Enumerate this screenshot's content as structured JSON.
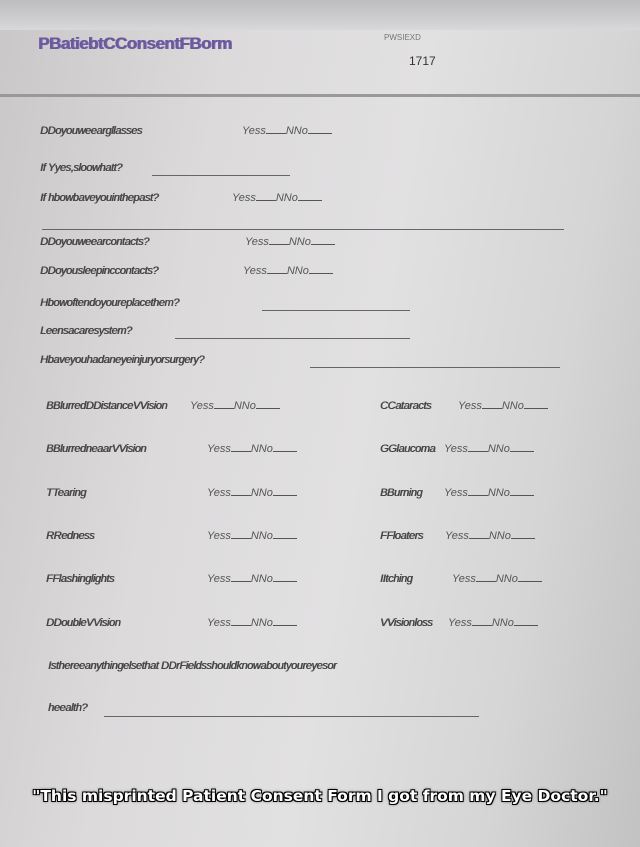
{
  "form": {
    "title": "PBatiebtCConsentFBorm",
    "patient_id_label": "PWSIEXD",
    "patient_id": "1717"
  },
  "questions": [
    {
      "text": "DDoyouweeargllasses",
      "yes": "Yess",
      "no": "NNo"
    },
    {
      "text": "If Yyes,sloowhatt?"
    },
    {
      "text": "If hbowbaveyouinthepast?",
      "yes": "Yess",
      "no": "NNo"
    },
    {
      "text": "DDoyouweearcontacts?",
      "yes": "Yess",
      "no": "NNo"
    },
    {
      "text": "DDoyousleepinccontacts?",
      "yes": "Yess",
      "no": "NNo"
    },
    {
      "text": "Hbowoftendoyoureplacethem?"
    },
    {
      "text": "Leensacaresystem?"
    },
    {
      "text": "Hbaveyouhadaneyeinjuryorsurgery?"
    }
  ],
  "symptoms_left": [
    {
      "label": "BBlurredDDistanceVVision",
      "yes": "Yess",
      "no": "NNo"
    },
    {
      "label": "BBlurredneaarVVision",
      "yes": "Yess",
      "no": "NNo"
    },
    {
      "label": "TTearing",
      "yes": "Yess",
      "no": "NNo"
    },
    {
      "label": "RRedness",
      "yes": "Yess",
      "no": "NNo"
    },
    {
      "label": "FFlashinglights",
      "yes": "Yess",
      "no": "NNo"
    },
    {
      "label": "DDoubleVVision",
      "yes": "Yess",
      "no": "NNo"
    }
  ],
  "symptoms_right": [
    {
      "label": "CCataracts",
      "yes": "Yess",
      "no": "NNo"
    },
    {
      "label": "GGlaucoma",
      "yes": "Yess",
      "no": "NNo"
    },
    {
      "label": "BBurning",
      "yes": "Yess",
      "no": "NNo"
    },
    {
      "label": "FFloaters",
      "yes": "Yess",
      "no": "NNo"
    },
    {
      "label": "IItching",
      "yes": "Yess",
      "no": "NNo"
    },
    {
      "label": "VVisionloss",
      "yes": "Yess",
      "no": "NNo"
    }
  ],
  "final_question": {
    "line1": "Isthereeanythingelsethat DDrFieldsshouldknowaboutyoureyesor",
    "line2": "heealth?"
  },
  "caption": "\"This misprinted Patient Consent Form I got from my Eye Doctor.\""
}
